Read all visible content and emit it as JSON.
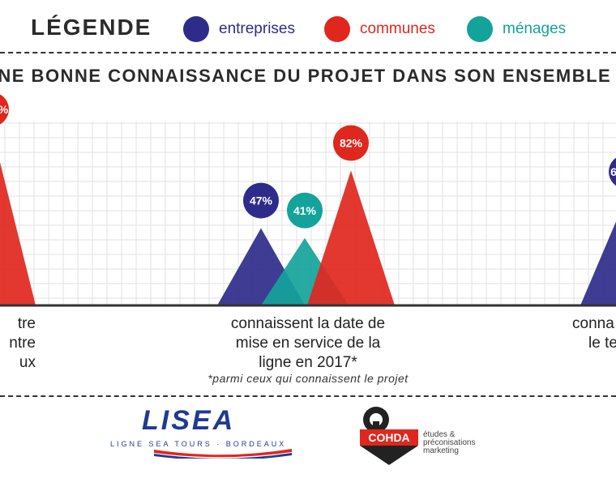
{
  "legend": {
    "title": "LÉGENDE",
    "items": [
      {
        "label": "entreprises",
        "color": "#2e2c8a"
      },
      {
        "label": "communes",
        "color": "#e0271d"
      },
      {
        "label": "ménages",
        "color": "#14a39a"
      }
    ]
  },
  "subtitle": "UNE BONNE CONNAISSANCE DU PROJET DANS SON ENSEMBLE",
  "chart_data": {
    "type": "area",
    "series": [
      {
        "name": "entreprises",
        "color": "#2e2c8a"
      },
      {
        "name": "communes",
        "color": "#e0271d"
      },
      {
        "name": "ménages",
        "color": "#14a39a"
      }
    ],
    "groups": [
      {
        "caption": [
          "connaissent la date de",
          "mise en service de la",
          "ligne en 2017*"
        ],
        "values": [
          {
            "series": "entreprises",
            "value": 47,
            "label": "47%"
          },
          {
            "series": "ménages",
            "value": 41,
            "label": "41%"
          },
          {
            "series": "communes",
            "value": 82,
            "label": "82%"
          }
        ]
      }
    ],
    "partial_groups": {
      "left": {
        "caption": [
          "tre",
          "ntre",
          "ux"
        ],
        "values": [
          {
            "series": "communes",
            "label": "%"
          }
        ]
      },
      "right": {
        "caption": [
          "conna",
          "le te"
        ],
        "values": [
          {
            "series": "entreprises",
            "label": "6"
          }
        ]
      }
    },
    "ylim": [
      0,
      100
    ],
    "grid": true
  },
  "footnote": "*parmi ceux qui connaissent le projet",
  "logos": {
    "lisea": {
      "word": "LISEA",
      "tagline": "LIGNE SEA TOURS · BORDEAUX"
    },
    "cohda": {
      "word": "COHDA",
      "tagline": [
        "études &",
        "préconisations",
        "marketing"
      ]
    }
  }
}
